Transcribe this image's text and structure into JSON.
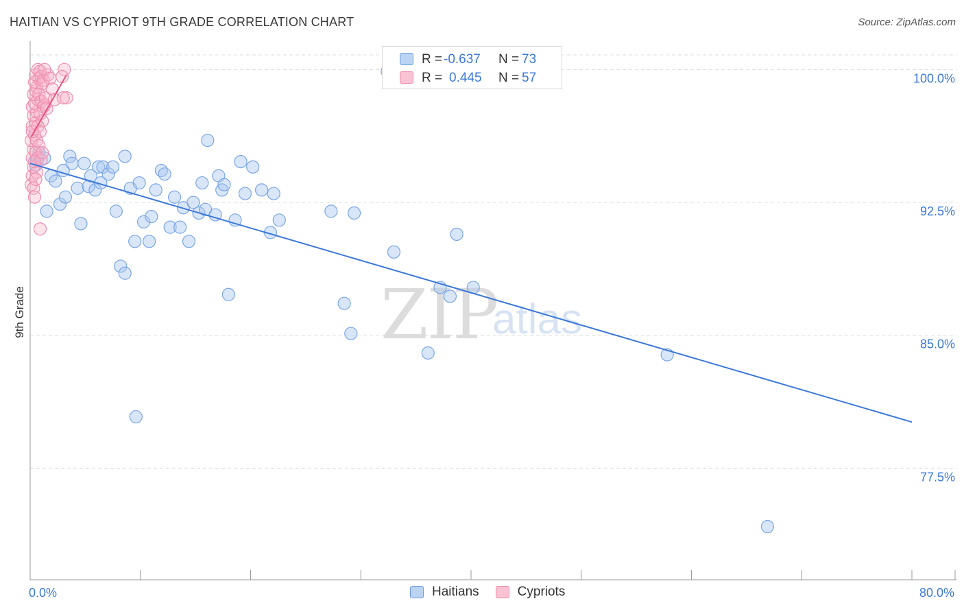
{
  "title": "HAITIAN VS CYPRIOT 9TH GRADE CORRELATION CHART",
  "source": "Source: ZipAtlas.com",
  "watermark": {
    "zip": "ZIP",
    "atlas": "atlas"
  },
  "legend": {
    "rows": [
      {
        "r_label": "R =",
        "r_value": "-0.637",
        "n_label": "N =",
        "n_value": "73"
      },
      {
        "r_label": "R =",
        "r_value": "0.445",
        "n_label": "N =",
        "n_value": "57"
      }
    ]
  },
  "bottom_legend": {
    "haitians": "Haitians",
    "cypriots": "Cypriots"
  },
  "colors": {
    "blue": "#3b78d8",
    "blue_fill": "#a9c8f0",
    "pink": "#e8517f",
    "pink_fill": "#f5b3c8",
    "grid": "#dddddd",
    "axis_label": "#3b78d8"
  },
  "chart_data": {
    "type": "scatter",
    "title": "HAITIAN VS CYPRIOT 9TH GRADE CORRELATION CHART",
    "ylabel": "9th Grade",
    "xlabel": "",
    "xlim": [
      0,
      80
    ],
    "ylim": [
      71.2,
      101.6
    ],
    "x_tick_labels": [
      {
        "value": 0,
        "label": "0.0%"
      },
      {
        "value": 80,
        "label": "80.0%"
      }
    ],
    "y_ticks": [
      {
        "value": 100.0,
        "label": "100.0%"
      },
      {
        "value": 92.5,
        "label": "92.5%"
      },
      {
        "value": 85.0,
        "label": "85.0%"
      },
      {
        "value": 77.5,
        "label": "77.5%"
      }
    ],
    "series": [
      {
        "name": "Haitians",
        "r": -0.637,
        "n": 73,
        "trend": {
          "x": [
            0,
            80
          ],
          "y": [
            94.7,
            80.1
          ]
        },
        "points": [
          [
            0.5,
            94.6
          ],
          [
            0.6,
            94.9
          ],
          [
            0.8,
            95.3
          ],
          [
            1.3,
            95.0
          ],
          [
            1.5,
            92.0
          ],
          [
            1.9,
            94.0
          ],
          [
            2.3,
            93.7
          ],
          [
            2.7,
            92.4
          ],
          [
            3.0,
            94.3
          ],
          [
            3.2,
            92.8
          ],
          [
            3.6,
            95.1
          ],
          [
            3.8,
            94.7
          ],
          [
            4.3,
            93.3
          ],
          [
            4.6,
            91.3
          ],
          [
            4.9,
            94.7
          ],
          [
            5.3,
            93.4
          ],
          [
            5.5,
            94.0
          ],
          [
            5.9,
            93.2
          ],
          [
            6.2,
            94.5
          ],
          [
            6.4,
            93.6
          ],
          [
            6.6,
            94.5
          ],
          [
            7.1,
            94.1
          ],
          [
            7.5,
            94.5
          ],
          [
            7.8,
            92.0
          ],
          [
            8.2,
            88.9
          ],
          [
            8.6,
            88.5
          ],
          [
            8.6,
            95.1
          ],
          [
            9.1,
            93.3
          ],
          [
            9.5,
            90.3
          ],
          [
            9.6,
            80.4
          ],
          [
            9.9,
            93.6
          ],
          [
            10.3,
            91.4
          ],
          [
            10.8,
            90.3
          ],
          [
            11.0,
            91.7
          ],
          [
            11.4,
            93.2
          ],
          [
            11.9,
            94.3
          ],
          [
            12.2,
            94.1
          ],
          [
            12.7,
            91.1
          ],
          [
            13.1,
            92.8
          ],
          [
            13.6,
            91.1
          ],
          [
            13.9,
            92.2
          ],
          [
            14.4,
            90.3
          ],
          [
            14.8,
            92.5
          ],
          [
            15.3,
            91.9
          ],
          [
            15.6,
            93.6
          ],
          [
            15.9,
            92.1
          ],
          [
            16.1,
            96.0
          ],
          [
            16.8,
            91.8
          ],
          [
            17.1,
            94.0
          ],
          [
            17.4,
            93.2
          ],
          [
            17.6,
            93.5
          ],
          [
            18.0,
            87.3
          ],
          [
            18.6,
            91.5
          ],
          [
            19.1,
            94.8
          ],
          [
            19.5,
            93.0
          ],
          [
            20.2,
            94.5
          ],
          [
            21.0,
            93.2
          ],
          [
            21.8,
            90.8
          ],
          [
            22.1,
            93.0
          ],
          [
            22.6,
            91.5
          ],
          [
            27.3,
            92.0
          ],
          [
            28.5,
            86.8
          ],
          [
            29.1,
            85.1
          ],
          [
            29.4,
            91.9
          ],
          [
            33.0,
            89.7
          ],
          [
            36.1,
            84.0
          ],
          [
            37.2,
            87.7
          ],
          [
            38.1,
            87.2
          ],
          [
            38.7,
            90.7
          ],
          [
            40.2,
            87.7
          ],
          [
            57.8,
            83.9
          ],
          [
            66.9,
            74.2
          ],
          [
            32.4,
            99.9
          ]
        ]
      },
      {
        "name": "Cypriots",
        "r": 0.445,
        "n": 57,
        "trend": {
          "x": [
            0.1,
            3.3
          ],
          "y": [
            96.2,
            99.7
          ]
        },
        "points": [
          [
            0.1,
            93.5
          ],
          [
            0.2,
            94.0
          ],
          [
            0.3,
            93.3
          ],
          [
            0.4,
            92.8
          ],
          [
            0.2,
            95.0
          ],
          [
            0.3,
            95.5
          ],
          [
            0.1,
            96.0
          ],
          [
            0.4,
            96.3
          ],
          [
            0.2,
            96.8
          ],
          [
            0.5,
            97.0
          ],
          [
            0.3,
            97.4
          ],
          [
            0.6,
            97.6
          ],
          [
            0.2,
            97.9
          ],
          [
            0.4,
            98.1
          ],
          [
            0.7,
            98.3
          ],
          [
            0.3,
            98.6
          ],
          [
            0.5,
            98.8
          ],
          [
            0.6,
            99.0
          ],
          [
            0.4,
            99.3
          ],
          [
            0.8,
            99.5
          ],
          [
            0.5,
            99.7
          ],
          [
            0.7,
            100.0
          ],
          [
            0.9,
            99.9
          ],
          [
            1.0,
            99.6
          ],
          [
            1.1,
            99.2
          ],
          [
            0.8,
            98.6
          ],
          [
            1.0,
            98.2
          ],
          [
            1.2,
            97.9
          ],
          [
            0.9,
            97.5
          ],
          [
            1.1,
            97.1
          ],
          [
            0.7,
            96.8
          ],
          [
            0.9,
            96.5
          ],
          [
            0.6,
            96.0
          ],
          [
            0.8,
            95.7
          ],
          [
            0.5,
            95.3
          ],
          [
            0.7,
            95.0
          ],
          [
            1.3,
            98.0
          ],
          [
            1.5,
            97.8
          ],
          [
            1.4,
            98.4
          ],
          [
            1.2,
            99.4
          ],
          [
            1.6,
            99.7
          ],
          [
            1.3,
            100.0
          ],
          [
            1.8,
            99.5
          ],
          [
            2.0,
            98.9
          ],
          [
            2.2,
            98.3
          ],
          [
            0.3,
            94.5
          ],
          [
            0.6,
            94.2
          ],
          [
            0.5,
            93.8
          ],
          [
            0.4,
            94.8
          ],
          [
            0.9,
            91.0
          ],
          [
            1.0,
            94.9
          ],
          [
            1.1,
            95.3
          ],
          [
            3.1,
            100.0
          ],
          [
            3.3,
            98.4
          ],
          [
            3.0,
            98.4
          ],
          [
            2.9,
            99.6
          ],
          [
            0.2,
            96.5
          ]
        ]
      }
    ]
  }
}
